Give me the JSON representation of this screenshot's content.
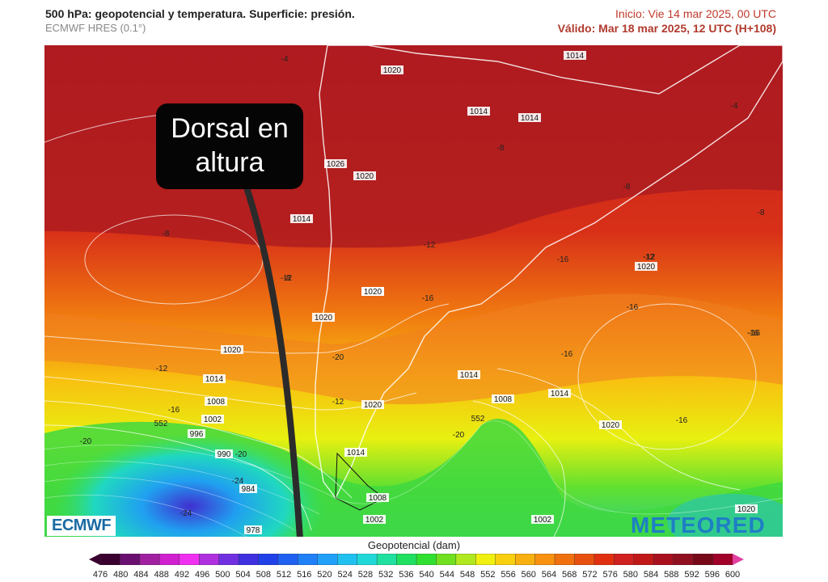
{
  "header": {
    "title": "500 hPa: geopotencial y temperatura. Superficie: presión.",
    "model": "ECMWF HRES (0.1°)",
    "init": "Inicio: Vie 14 mar 2025, 00 UTC",
    "valid": "Válido: Mar 18 mar 2025, 12 UTC (H+108)"
  },
  "callout": {
    "line1": "Dorsal en",
    "line2": "altura"
  },
  "logos": {
    "left": "ECMWF",
    "right": "METEORED"
  },
  "colorbar": {
    "title": "Geopotencial (dam)",
    "ticks": [
      "476",
      "480",
      "484",
      "488",
      "492",
      "496",
      "500",
      "504",
      "508",
      "512",
      "516",
      "520",
      "524",
      "528",
      "532",
      "536",
      "540",
      "544",
      "548",
      "552",
      "556",
      "560",
      "564",
      "568",
      "572",
      "576",
      "580",
      "584",
      "588",
      "592",
      "596",
      "600"
    ],
    "colors": [
      "#3a0030",
      "#6a1070",
      "#a020a0",
      "#d020d0",
      "#f030f0",
      "#b030e0",
      "#7030e0",
      "#4030e0",
      "#2040e8",
      "#2060f0",
      "#2080f8",
      "#20a0f8",
      "#20c0f0",
      "#20d8d8",
      "#20e0a0",
      "#20e060",
      "#30e030",
      "#70e020",
      "#b0e820",
      "#f0f010",
      "#f8d010",
      "#f8b010",
      "#f89010",
      "#f07010",
      "#e85010",
      "#e03010",
      "#d02020",
      "#c01818",
      "#a81020",
      "#901020",
      "#780818",
      "#a0002a"
    ]
  },
  "map_labels": {
    "pressure": [
      {
        "t": "1014"
      },
      {
        "t": "1020"
      },
      {
        "t": "1014"
      },
      {
        "t": "1014"
      },
      {
        "t": "1026"
      },
      {
        "t": "1020"
      },
      {
        "t": "1014"
      },
      {
        "t": "1020"
      },
      {
        "t": "1020"
      },
      {
        "t": "1020"
      },
      {
        "t": "1014"
      },
      {
        "t": "1008"
      },
      {
        "t": "1002"
      },
      {
        "t": "996"
      },
      {
        "t": "990"
      },
      {
        "t": "984"
      },
      {
        "t": "978"
      },
      {
        "t": "1020"
      },
      {
        "t": "1014"
      },
      {
        "t": "1008"
      },
      {
        "t": "1014"
      },
      {
        "t": "1020"
      },
      {
        "t": "1014"
      },
      {
        "t": "1008"
      },
      {
        "t": "1002"
      },
      {
        "t": "1002"
      },
      {
        "t": "1020"
      },
      {
        "t": "1020"
      },
      {
        "t": "1020"
      }
    ],
    "temperature": [
      {
        "t": "-4"
      },
      {
        "t": "-4"
      },
      {
        "t": "-8"
      },
      {
        "t": "-8"
      },
      {
        "t": "-8"
      },
      {
        "t": "-8"
      },
      {
        "t": "-12"
      },
      {
        "t": "-12"
      },
      {
        "t": "-12"
      },
      {
        "t": "-16"
      },
      {
        "t": "-16"
      },
      {
        "t": "-16"
      },
      {
        "t": "-16"
      },
      {
        "t": "-12"
      },
      {
        "t": "-16"
      },
      {
        "t": "-16"
      },
      {
        "t": "-20"
      },
      {
        "t": "-20"
      },
      {
        "t": "-24"
      },
      {
        "t": "-24"
      },
      {
        "t": "-20"
      },
      {
        "t": "-16"
      },
      {
        "t": "-20"
      },
      {
        "t": "-12"
      },
      {
        "t": "-8"
      },
      {
        "t": "-16"
      },
      {
        "t": "-12"
      }
    ],
    "geopotential": [
      {
        "t": "552"
      },
      {
        "t": "552"
      }
    ]
  }
}
